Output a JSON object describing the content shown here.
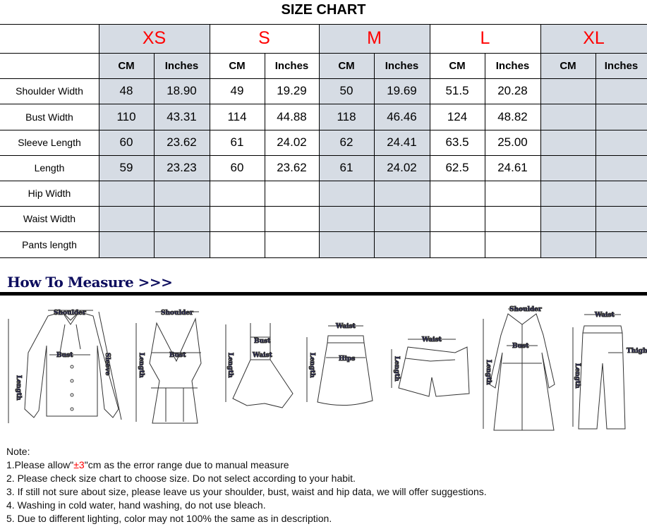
{
  "title": "SIZE CHART",
  "table": {
    "sizes": [
      "XS",
      "S",
      "M",
      "L",
      "XL"
    ],
    "units": [
      "CM",
      "Inches"
    ],
    "gray_color": "#d6dce4",
    "size_color": "#ff0000",
    "rows": [
      {
        "label": "Shoulder Width",
        "values": [
          "48",
          "18.90",
          "49",
          "19.29",
          "50",
          "19.69",
          "51.5",
          "20.28",
          "",
          ""
        ]
      },
      {
        "label": "Bust Width",
        "values": [
          "110",
          "43.31",
          "114",
          "44.88",
          "118",
          "46.46",
          "124",
          "48.82",
          "",
          ""
        ]
      },
      {
        "label": "Sleeve Length",
        "values": [
          "60",
          "23.62",
          "61",
          "24.02",
          "62",
          "24.41",
          "63.5",
          "25.00",
          "",
          ""
        ]
      },
      {
        "label": "Length",
        "values": [
          "59",
          "23.23",
          "60",
          "23.62",
          "61",
          "24.02",
          "62.5",
          "24.61",
          "",
          ""
        ]
      },
      {
        "label": "Hip Width",
        "values": [
          "",
          "",
          "",
          "",
          "",
          "",
          "",
          "",
          "",
          ""
        ]
      },
      {
        "label": "Waist Width",
        "values": [
          "",
          "",
          "",
          "",
          "",
          "",
          "",
          "",
          "",
          ""
        ]
      },
      {
        "label": "Pants length",
        "values": [
          "",
          "",
          "",
          "",
          "",
          "",
          "",
          "",
          "",
          ""
        ]
      }
    ]
  },
  "how_to_measure": {
    "heading": "How To Measure >>>",
    "label_color": "#1a1a6e",
    "garments": {
      "shirt": {
        "shoulder": "Shoulder",
        "bust": "Bust",
        "sleeve": "Sleeve",
        "length": "Length"
      },
      "tank": {
        "shoulder": "Shoulder",
        "bust": "Bust",
        "length": "Length"
      },
      "dress": {
        "bust": "Bust",
        "waist": "Waist",
        "length": "Length"
      },
      "skirt": {
        "waist": "Waist",
        "hips": "Hips",
        "length": "Length"
      },
      "shorts": {
        "waist": "Waist",
        "length": "Length"
      },
      "coat": {
        "shoulder": "Shoulder",
        "bust": "Bust",
        "length": "Length"
      },
      "pants": {
        "waist": "Waist",
        "thigh": "Thigh",
        "length": "Length"
      }
    }
  },
  "notes": {
    "heading": "Note:",
    "line1_pre": "1.Please allow\"",
    "line1_red": "±3",
    "line1_post": "\"cm as the error range due to manual measure",
    "lines": [
      "2. Please check size chart to choose size. Do not select according to your habit.",
      "3. If still not sure about size, please leave us your shoulder, bust, waist and hip data, we will offer suggestions.",
      "4. Washing in cold water, hand washing, do not use bleach.",
      "5. Due to different lighting, color may not 100% the same as in description."
    ]
  }
}
